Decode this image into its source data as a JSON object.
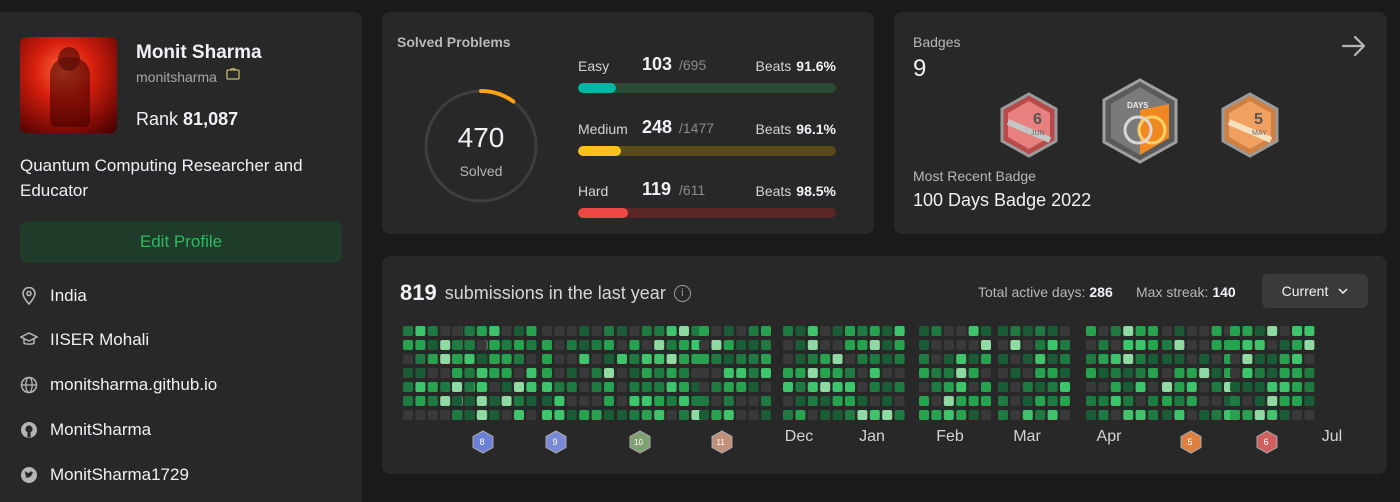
{
  "profile": {
    "name": "Monit Sharma",
    "username": "monitsharma",
    "rank_label": "Rank",
    "rank_value": "81,087",
    "bio": "Quantum Computing Researcher and Educator",
    "edit_label": "Edit Profile",
    "info": [
      {
        "icon": "location-icon",
        "text": "India"
      },
      {
        "icon": "graduation-cap-icon",
        "text": "IISER Mohali"
      },
      {
        "icon": "globe-icon",
        "text": "monitsharma.github.io"
      },
      {
        "icon": "github-icon",
        "text": "MonitSharma"
      },
      {
        "icon": "twitter-icon",
        "text": "MonitSharma1729"
      }
    ]
  },
  "solved": {
    "title": "Solved Problems",
    "total": "470",
    "total_label": "Solved",
    "ring_fraction": 0.1,
    "rows": [
      {
        "label": "Easy",
        "count": "103",
        "total": "/695",
        "beats_label": "Beats",
        "beats": "91.6%",
        "fraction": 0.148,
        "color": "#00b8a3",
        "track": "#2a4a36"
      },
      {
        "label": "Medium",
        "count": "248",
        "total": "/1477",
        "beats_label": "Beats",
        "beats": "96.1%",
        "fraction": 0.168,
        "color": "#ffc01e",
        "track": "#5a4a1a"
      },
      {
        "label": "Hard",
        "count": "119",
        "total": "/611",
        "beats_label": "Beats",
        "beats": "98.5%",
        "fraction": 0.195,
        "color": "#ef4743",
        "track": "#5a2626"
      }
    ]
  },
  "badges": {
    "title": "Badges",
    "count": "9",
    "items": [
      {
        "name": "june-badge",
        "label": "6",
        "sub": "JUN",
        "color": "#e07070"
      },
      {
        "name": "100-days-badge",
        "label": "DAYS",
        "sub": "",
        "color": "#8a8a8a"
      },
      {
        "name": "may-badge",
        "label": "5",
        "sub": "MAY",
        "color": "#e0a060"
      }
    ],
    "recent_label": "Most Recent Badge",
    "recent_name": "100 Days Badge 2022"
  },
  "submissions": {
    "count": "819",
    "label": "submissions in the last year",
    "active_label": "Total active days:",
    "active_value": "286",
    "streak_label": "Max streak:",
    "streak_value": "140",
    "select_label": "Current",
    "months": [
      "Dec",
      "Jan",
      "Feb",
      "Mar",
      "Apr",
      "Jul"
    ],
    "month_badges": [
      {
        "name": "aug-2022-badge",
        "label": "8",
        "color": "#6b7fd6"
      },
      {
        "name": "sep-2022-badge",
        "label": "9",
        "color": "#7a8ad8"
      },
      {
        "name": "oct-2022-badge",
        "label": "10",
        "color": "#7fa070"
      },
      {
        "name": "nov-2022-badge",
        "label": "11",
        "color": "#c0907a"
      },
      {
        "name": "may-badge-small",
        "label": "5",
        "color": "#e08040"
      },
      {
        "name": "jun-badge-small",
        "label": "6",
        "color": "#d06060"
      }
    ]
  }
}
